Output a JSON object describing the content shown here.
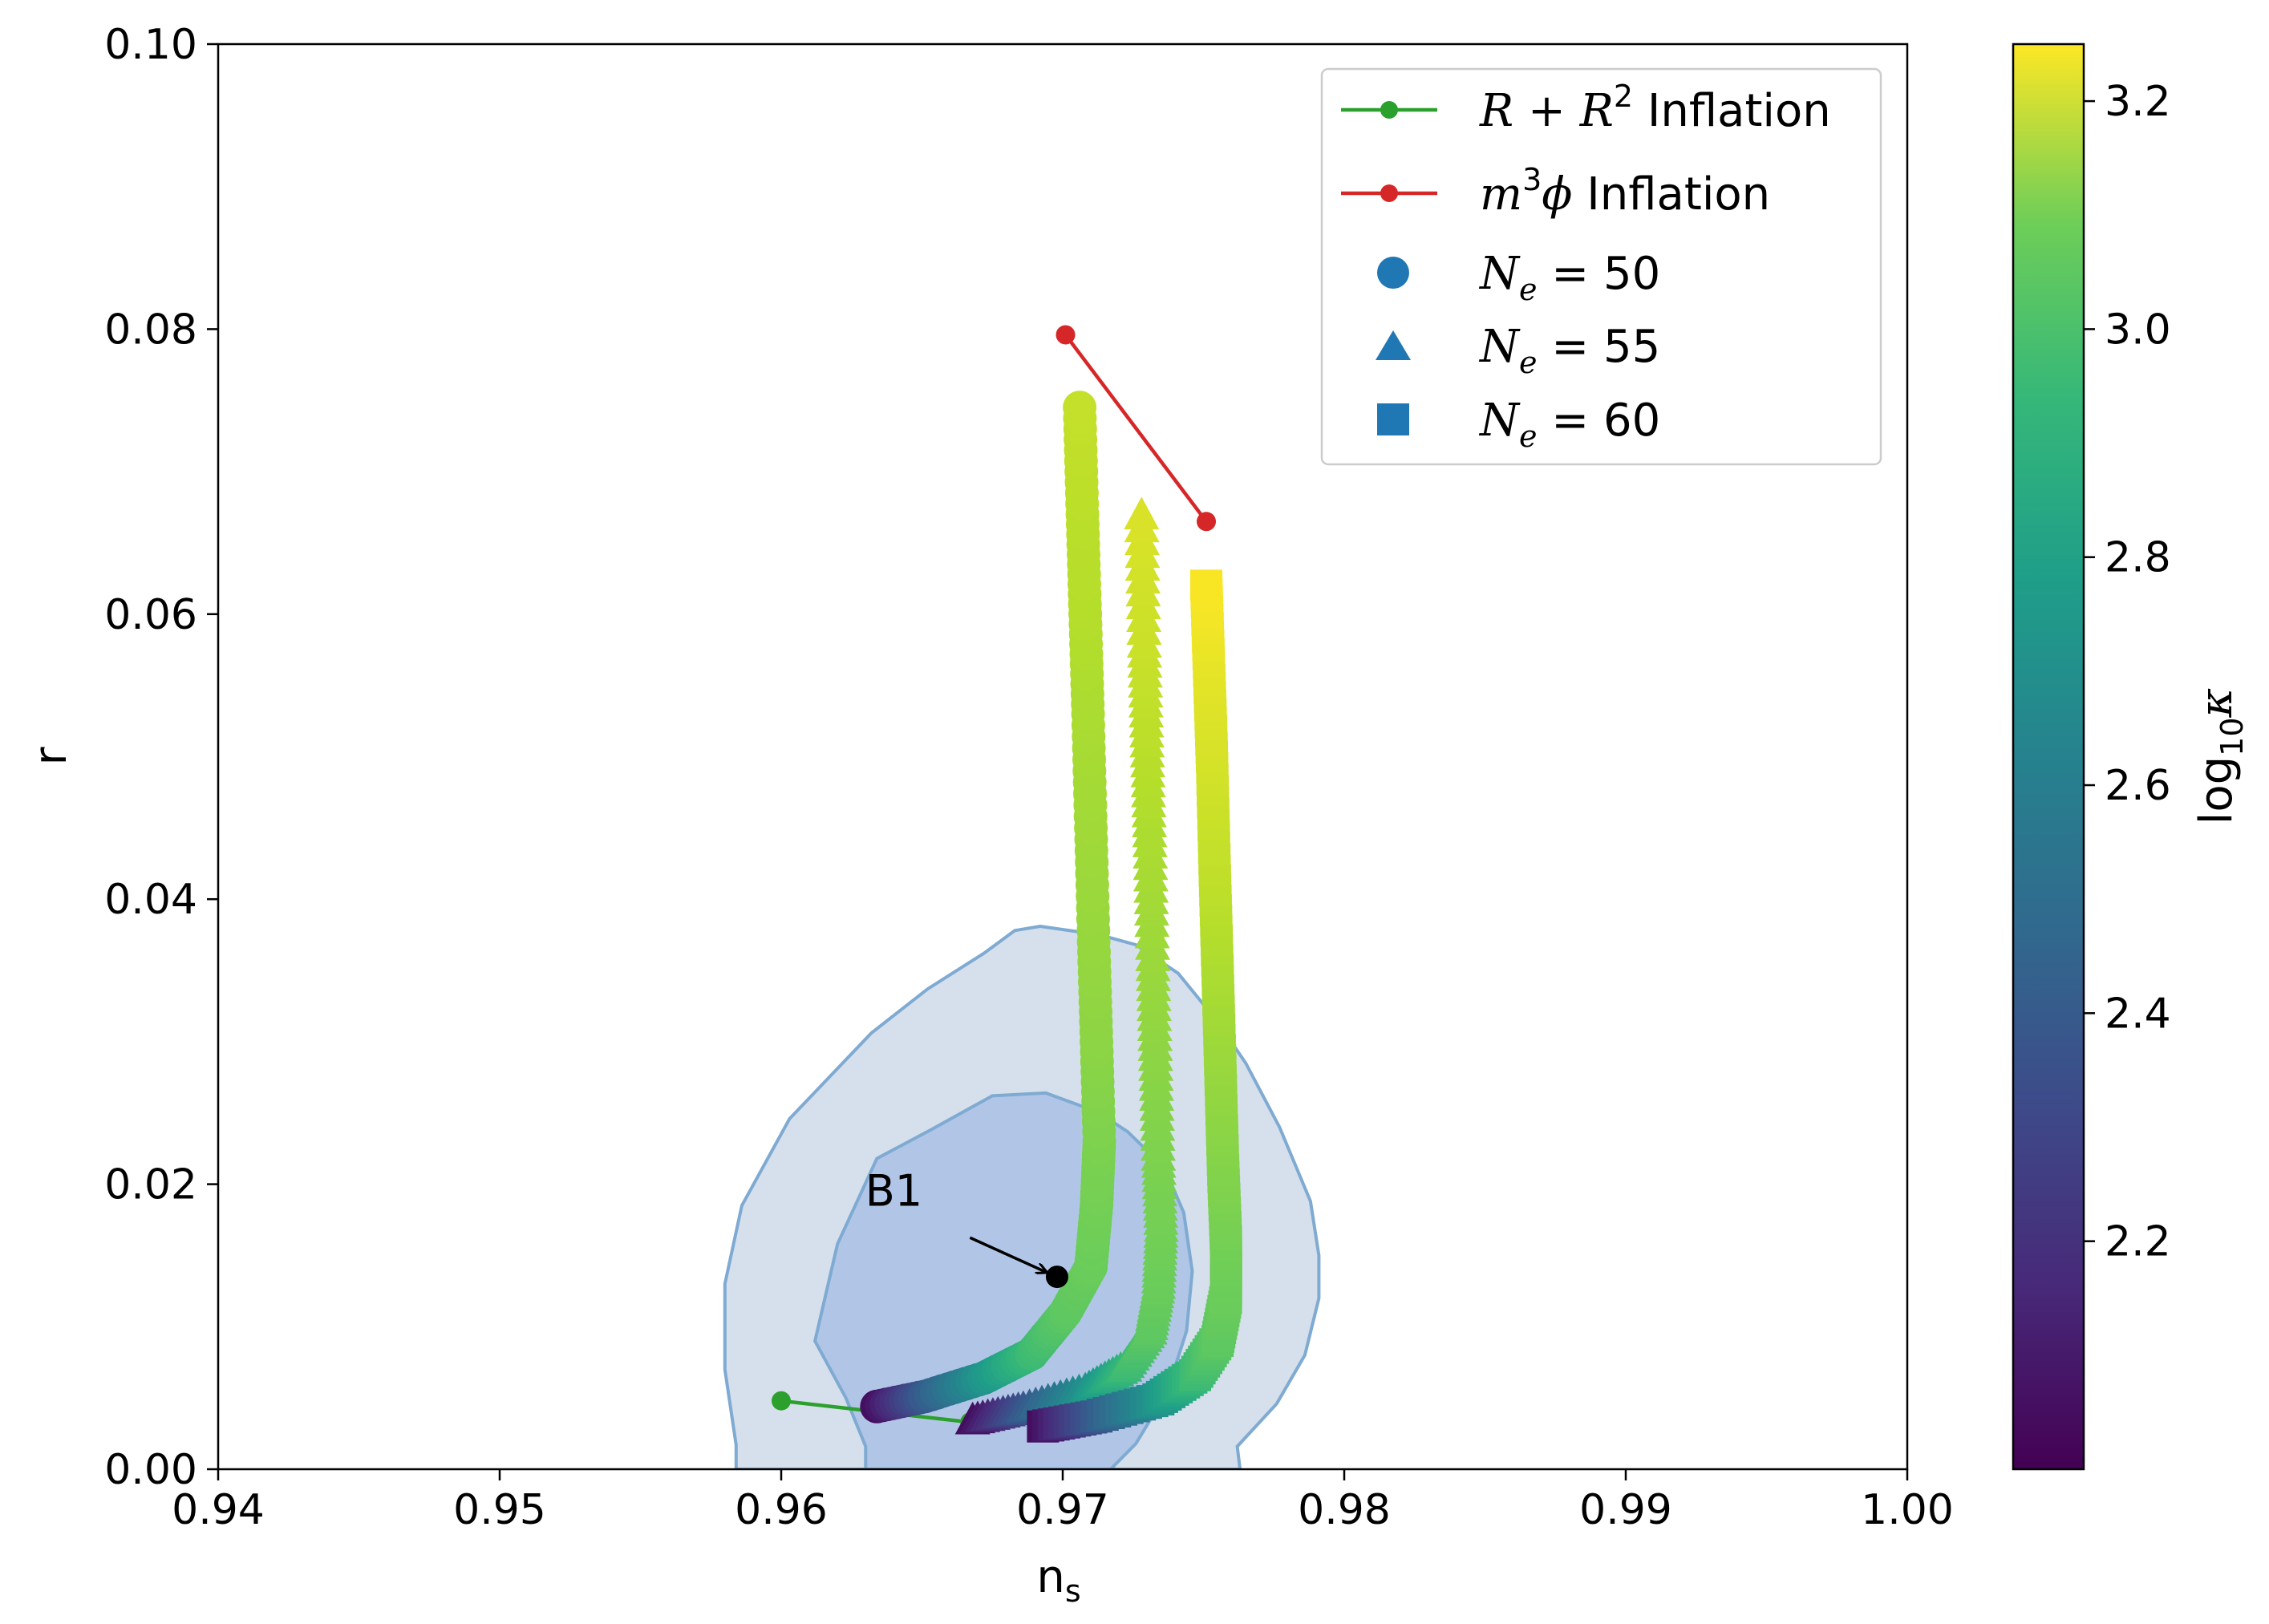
{
  "chart_data": {
    "type": "scatter",
    "title": "",
    "xlabel": "n",
    "xlabel_sub": "s",
    "ylabel": "r",
    "xlim": [
      0.94,
      1.0
    ],
    "ylim": [
      0.0,
      0.1
    ],
    "xticks": [
      "0.94",
      "0.95",
      "0.96",
      "0.97",
      "0.98",
      "0.99",
      "1.00"
    ],
    "xtick_values": [
      0.94,
      0.95,
      0.96,
      0.97,
      0.98,
      0.99,
      1.0
    ],
    "yticks": [
      "0.00",
      "0.02",
      "0.04",
      "0.06",
      "0.08",
      "0.10"
    ],
    "ytick_values": [
      0.0,
      0.02,
      0.04,
      0.06,
      0.08,
      0.1
    ],
    "grid": false,
    "legend_position": "upper-right",
    "colorbar": {
      "label": "log10κ",
      "label_main": "log",
      "label_sub": "10",
      "label_kappa": "κ",
      "colormap": "viridis",
      "range": [
        2.0,
        3.25
      ],
      "ticks": [
        "2.2",
        "2.4",
        "2.6",
        "2.8",
        "3.0",
        "3.2"
      ],
      "tick_values": [
        2.2,
        2.4,
        2.6,
        2.8,
        3.0,
        3.2
      ]
    },
    "contours": [
      {
        "level": "95%",
        "fill": "#d6e0ec",
        "edge": "#7faad2",
        "points": [
          [
            0.9584,
            0.0
          ],
          [
            0.9584,
            0.0017
          ],
          [
            0.958,
            0.007
          ],
          [
            0.958,
            0.013
          ],
          [
            0.9586,
            0.0185
          ],
          [
            0.9603,
            0.0246
          ],
          [
            0.9632,
            0.0306
          ],
          [
            0.9652,
            0.0337
          ],
          [
            0.9672,
            0.0362
          ],
          [
            0.9683,
            0.0378
          ],
          [
            0.9692,
            0.0381
          ],
          [
            0.9713,
            0.0375
          ],
          [
            0.9726,
            0.0368
          ],
          [
            0.9741,
            0.0348
          ],
          [
            0.9755,
            0.0314
          ],
          [
            0.9765,
            0.0285
          ],
          [
            0.9777,
            0.024
          ],
          [
            0.9788,
            0.0188
          ],
          [
            0.9791,
            0.015
          ],
          [
            0.9791,
            0.012
          ],
          [
            0.9786,
            0.008
          ],
          [
            0.9776,
            0.0046
          ],
          [
            0.9762,
            0.0016
          ],
          [
            0.9763,
            0.0
          ]
        ]
      },
      {
        "level": "68%",
        "fill": "#b1c6e6",
        "edge": "#7faad2",
        "points": [
          [
            0.963,
            0.0
          ],
          [
            0.963,
            0.0016
          ],
          [
            0.9623,
            0.005
          ],
          [
            0.9612,
            0.009
          ],
          [
            0.962,
            0.0158
          ],
          [
            0.9634,
            0.0218
          ],
          [
            0.9653,
            0.0238
          ],
          [
            0.9675,
            0.0262
          ],
          [
            0.9694,
            0.0264
          ],
          [
            0.9712,
            0.0251
          ],
          [
            0.9723,
            0.0237
          ],
          [
            0.9736,
            0.0212
          ],
          [
            0.9743,
            0.018
          ],
          [
            0.9746,
            0.0139
          ],
          [
            0.9744,
            0.0097
          ],
          [
            0.9737,
            0.0054
          ],
          [
            0.9726,
            0.0018
          ],
          [
            0.9717,
            0.0
          ]
        ]
      }
    ],
    "series": [
      {
        "name": "R + R² Inflation",
        "label_main": "R + R",
        "label_sup": "2",
        "label_rest": " Inflation",
        "type": "line",
        "color": "#2ca02c",
        "x": [
          0.96,
          0.9667
        ],
        "y": [
          0.0048,
          0.0033
        ]
      },
      {
        "name": "m³ϕ Inflation",
        "label_main": "m",
        "label_sup": "3",
        "label_phi": "ϕ",
        "label_rest": " Inflation",
        "type": "line",
        "color": "#d62728",
        "x": [
          0.9701,
          0.9751
        ],
        "y": [
          0.0796,
          0.0665
        ]
      },
      {
        "name": "Ne = 50",
        "label_main": "N",
        "label_sub": "e",
        "label_rest": " = 50",
        "type": "scatter",
        "marker": "circle",
        "legend_color": "#1f77b4",
        "points": [
          [
            0.9634,
            0.0044,
            2.05
          ],
          [
            0.9651,
            0.0051,
            2.35
          ],
          [
            0.9672,
            0.0064,
            2.65
          ],
          [
            0.9689,
            0.0081,
            2.85
          ],
          [
            0.9701,
            0.011,
            2.93
          ],
          [
            0.971,
            0.0142,
            2.96
          ],
          [
            0.9712,
            0.0185,
            2.98
          ],
          [
            0.9713,
            0.023,
            3.0
          ],
          [
            0.9712,
            0.03,
            3.03
          ],
          [
            0.9711,
            0.037,
            3.05
          ],
          [
            0.971,
            0.045,
            3.07
          ],
          [
            0.9709,
            0.053,
            3.09
          ],
          [
            0.9708,
            0.06,
            3.11
          ],
          [
            0.9707,
            0.067,
            3.12
          ],
          [
            0.9706,
            0.0745,
            3.14
          ]
        ]
      },
      {
        "name": "Ne = 55",
        "label_main": "N",
        "label_sub": "e",
        "label_rest": " = 55",
        "type": "scatter",
        "marker": "triangle",
        "legend_color": "#1f77b4",
        "points": [
          [
            0.9668,
            0.0035,
            2.05
          ],
          [
            0.9686,
            0.0043,
            2.35
          ],
          [
            0.9708,
            0.0056,
            2.65
          ],
          [
            0.9722,
            0.0072,
            2.85
          ],
          [
            0.9731,
            0.0098,
            2.93
          ],
          [
            0.9734,
            0.013,
            2.96
          ],
          [
            0.9735,
            0.017,
            2.98
          ],
          [
            0.9734,
            0.022,
            3.0
          ],
          [
            0.9733,
            0.029,
            3.03
          ],
          [
            0.9732,
            0.036,
            3.06
          ],
          [
            0.9731,
            0.044,
            3.09
          ],
          [
            0.973,
            0.051,
            3.12
          ],
          [
            0.9729,
            0.058,
            3.15
          ],
          [
            0.9728,
            0.067,
            3.18
          ]
        ]
      },
      {
        "name": "Ne = 60",
        "label_main": "N",
        "label_sub": "e",
        "label_rest": " = 60",
        "type": "scatter",
        "marker": "square",
        "legend_color": "#1f77b4",
        "points": [
          [
            0.9693,
            0.003,
            2.05
          ],
          [
            0.9712,
            0.0037,
            2.35
          ],
          [
            0.9734,
            0.0049,
            2.65
          ],
          [
            0.9747,
            0.0066,
            2.85
          ],
          [
            0.9755,
            0.009,
            2.93
          ],
          [
            0.9758,
            0.012,
            2.96
          ],
          [
            0.9758,
            0.016,
            2.98
          ],
          [
            0.9757,
            0.021,
            3.01
          ],
          [
            0.9756,
            0.028,
            3.05
          ],
          [
            0.9755,
            0.035,
            3.09
          ],
          [
            0.9754,
            0.042,
            3.13
          ],
          [
            0.9753,
            0.05,
            3.17
          ],
          [
            0.9752,
            0.056,
            3.2
          ],
          [
            0.9751,
            0.062,
            3.24
          ]
        ]
      }
    ],
    "annotations": [
      {
        "text": "B1",
        "point": [
          0.9698,
          0.0135
        ],
        "text_pos": [
          0.964,
          0.0185
        ],
        "color": "#000000"
      }
    ]
  }
}
